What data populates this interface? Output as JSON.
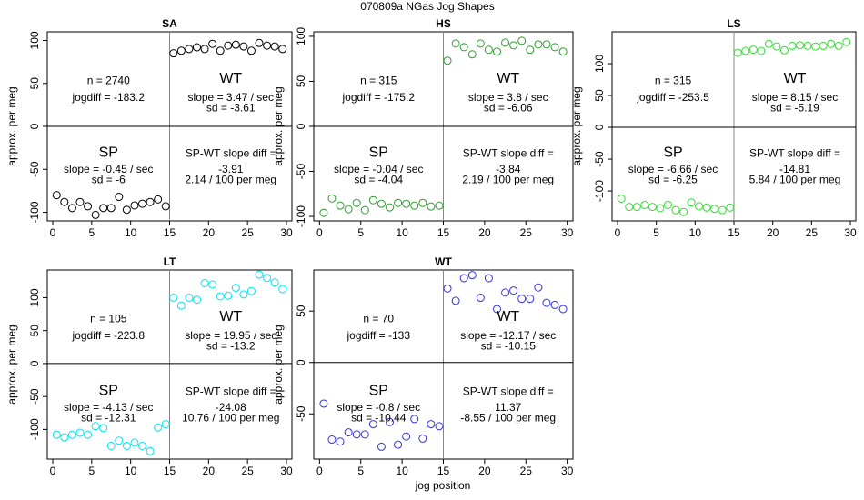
{
  "title": "070809a    NGas Jog Shapes",
  "xlabel": "jog position",
  "chart_data": [
    {
      "type": "scatter",
      "title": "SA",
      "ylabel": "approx. per meg",
      "color": "#000000",
      "x": [
        0.5,
        1.5,
        2.5,
        3.5,
        4.5,
        5.5,
        6.5,
        7.5,
        8.5,
        9.5,
        10.5,
        11.5,
        12.5,
        13.5,
        14.5,
        15.5,
        16.5,
        17.5,
        18.5,
        19.5,
        20.5,
        21.5,
        22.5,
        23.5,
        24.5,
        25.5,
        26.5,
        27.5,
        28.5,
        29.5
      ],
      "values": [
        -80,
        -88,
        -95,
        -88,
        -93,
        -103,
        -95,
        -95,
        -82,
        -97,
        -92,
        -90,
        -88,
        -85,
        -93,
        85,
        88,
        90,
        92,
        90,
        96,
        88,
        94,
        95,
        93,
        88,
        97,
        94,
        93,
        90
      ],
      "xlim": [
        -0.7,
        30.7
      ],
      "ylim": [
        -110,
        110
      ],
      "xticks": [
        0,
        5,
        10,
        15,
        20,
        25,
        30
      ],
      "yticks": [
        -100,
        -50,
        0,
        50,
        100
      ],
      "vline": 15,
      "hline": 0,
      "annotations": [
        "n = 2740",
        "jogdiff = -183.2",
        "WT",
        "slope = 3.47 / sec",
        "sd = -3.61",
        "SP",
        "slope = -0.45 / sec",
        "sd = -6",
        "SP-WT slope diff =",
        "-3.91",
        "2.14 / 100 per meg"
      ]
    },
    {
      "type": "scatter",
      "title": "HS",
      "ylabel": "approx. per meg",
      "color": "#2e9b2e",
      "x": [
        0.5,
        1.5,
        2.5,
        3.5,
        4.5,
        5.5,
        6.5,
        7.5,
        8.5,
        9.5,
        10.5,
        11.5,
        12.5,
        13.5,
        14.5,
        15.5,
        16.5,
        17.5,
        18.5,
        19.5,
        20.5,
        21.5,
        22.5,
        23.5,
        24.5,
        25.5,
        26.5,
        27.5,
        28.5,
        29.5
      ],
      "values": [
        -96,
        -80,
        -88,
        -92,
        -85,
        -93,
        -82,
        -86,
        -90,
        -85,
        -86,
        -88,
        -85,
        -89,
        -88,
        73,
        92,
        88,
        80,
        92,
        85,
        83,
        93,
        90,
        95,
        85,
        91,
        91,
        88,
        83
      ],
      "xlim": [
        -0.7,
        30.7
      ],
      "ylim": [
        -105,
        105
      ],
      "xticks": [
        0,
        5,
        10,
        15,
        20,
        25,
        30
      ],
      "yticks": [
        -100,
        -50,
        0,
        50,
        100
      ],
      "vline": 15,
      "hline": 0,
      "annotations": [
        "n = 315",
        "jogdiff = -175.2",
        "WT",
        "slope = 3.8 / sec",
        "sd = -6.06",
        "SP",
        "slope = -0.04 / sec",
        "sd = -4.04",
        "SP-WT slope diff =",
        "-3.84",
        "2.19 / 100 per meg"
      ]
    },
    {
      "type": "scatter",
      "title": "LS",
      "ylabel": "approx. per meg",
      "color": "#33dd33",
      "x": [
        0.5,
        1.5,
        2.5,
        3.5,
        4.5,
        5.5,
        6.5,
        7.5,
        8.5,
        9.5,
        10.5,
        11.5,
        12.5,
        13.5,
        14.5,
        15.5,
        16.5,
        17.5,
        18.5,
        19.5,
        20.5,
        21.5,
        22.5,
        23.5,
        24.5,
        25.5,
        26.5,
        27.5,
        28.5,
        29.5
      ],
      "values": [
        -112,
        -125,
        -125,
        -122,
        -125,
        -127,
        -122,
        -130,
        -133,
        -118,
        -124,
        -126,
        -128,
        -130,
        -126,
        117,
        120,
        122,
        120,
        131,
        127,
        121,
        128,
        129,
        128,
        127,
        128,
        131,
        128,
        134
      ],
      "xlim": [
        -0.7,
        30.7
      ],
      "ylim": [
        -147,
        150
      ],
      "xticks": [
        0,
        5,
        10,
        15,
        20,
        25,
        30
      ],
      "yticks": [
        -100,
        -50,
        0,
        50,
        100
      ],
      "vline": 15,
      "hline": 0,
      "annotations": [
        "n = 315",
        "jogdiff = -253.5",
        "WT",
        "slope = 8.15 / sec",
        "sd = -5.19",
        "SP",
        "slope = -6.66 / sec",
        "sd = -6.25",
        "SP-WT slope diff =",
        "-14.81",
        "5.84 / 100 per meg"
      ]
    },
    {
      "type": "scatter",
      "title": "LT",
      "ylabel": "approx. per meg",
      "color": "#00e5ee",
      "x": [
        0.5,
        1.5,
        2.5,
        3.5,
        4.5,
        5.5,
        6.5,
        7.5,
        8.5,
        9.5,
        10.5,
        11.5,
        12.5,
        13.5,
        14.5,
        15.5,
        16.5,
        17.5,
        18.5,
        19.5,
        20.5,
        21.5,
        22.5,
        23.5,
        24.5,
        25.5,
        26.5,
        27.5,
        28.5,
        29.5
      ],
      "values": [
        -108,
        -112,
        -108,
        -105,
        -108,
        -95,
        -98,
        -125,
        -117,
        -125,
        -120,
        -125,
        -133,
        -97,
        -92,
        100,
        88,
        100,
        97,
        122,
        120,
        102,
        103,
        115,
        105,
        110,
        135,
        130,
        123,
        113
      ],
      "xlim": [
        -0.7,
        30.7
      ],
      "ylim": [
        -145,
        142
      ],
      "xticks": [
        0,
        5,
        10,
        15,
        20,
        25,
        30
      ],
      "yticks": [
        -100,
        -50,
        0,
        50,
        100
      ],
      "vline": 15,
      "hline": 0,
      "annotations": [
        "n = 105",
        "jogdiff = -223.8",
        "WT",
        "slope = 19.95 / sec",
        "sd = -13.2",
        "SP",
        "slope = -4.13 / sec",
        "sd = -12.31",
        "SP-WT slope diff =",
        "-24.08",
        "10.76 / 100 per meg"
      ]
    },
    {
      "type": "scatter",
      "title": "WT",
      "ylabel": "approx. per meg",
      "color": "#3333dd",
      "x": [
        0.5,
        1.5,
        2.5,
        3.5,
        4.5,
        5.5,
        6.5,
        7.5,
        8.5,
        9.5,
        10.5,
        11.5,
        12.5,
        13.5,
        14.5,
        15.5,
        16.5,
        17.5,
        18.5,
        19.5,
        20.5,
        21.5,
        22.5,
        23.5,
        24.5,
        25.5,
        26.5,
        27.5,
        28.5,
        29.5
      ],
      "values": [
        -40,
        -75,
        -77,
        -68,
        -70,
        -70,
        -60,
        -82,
        -58,
        -80,
        -72,
        -55,
        -74,
        -60,
        -62,
        72,
        60,
        82,
        85,
        63,
        82,
        52,
        68,
        70,
        62,
        62,
        73,
        58,
        56,
        52
      ],
      "xlim": [
        -0.7,
        30.7
      ],
      "ylim": [
        -94,
        90
      ],
      "xticks": [
        0,
        5,
        10,
        15,
        20,
        25,
        30
      ],
      "yticks": [
        -50,
        0,
        50
      ],
      "vline": 15,
      "hline": 0,
      "annotations": [
        "n = 70",
        "jogdiff = -133",
        "WT",
        "slope = -12.17 / sec",
        "sd = -10.15",
        "SP",
        "slope = -0.8 / sec",
        "sd = -10.44",
        "SP-WT slope diff =",
        "11.37",
        "-8.55 / 100 per meg"
      ]
    }
  ]
}
